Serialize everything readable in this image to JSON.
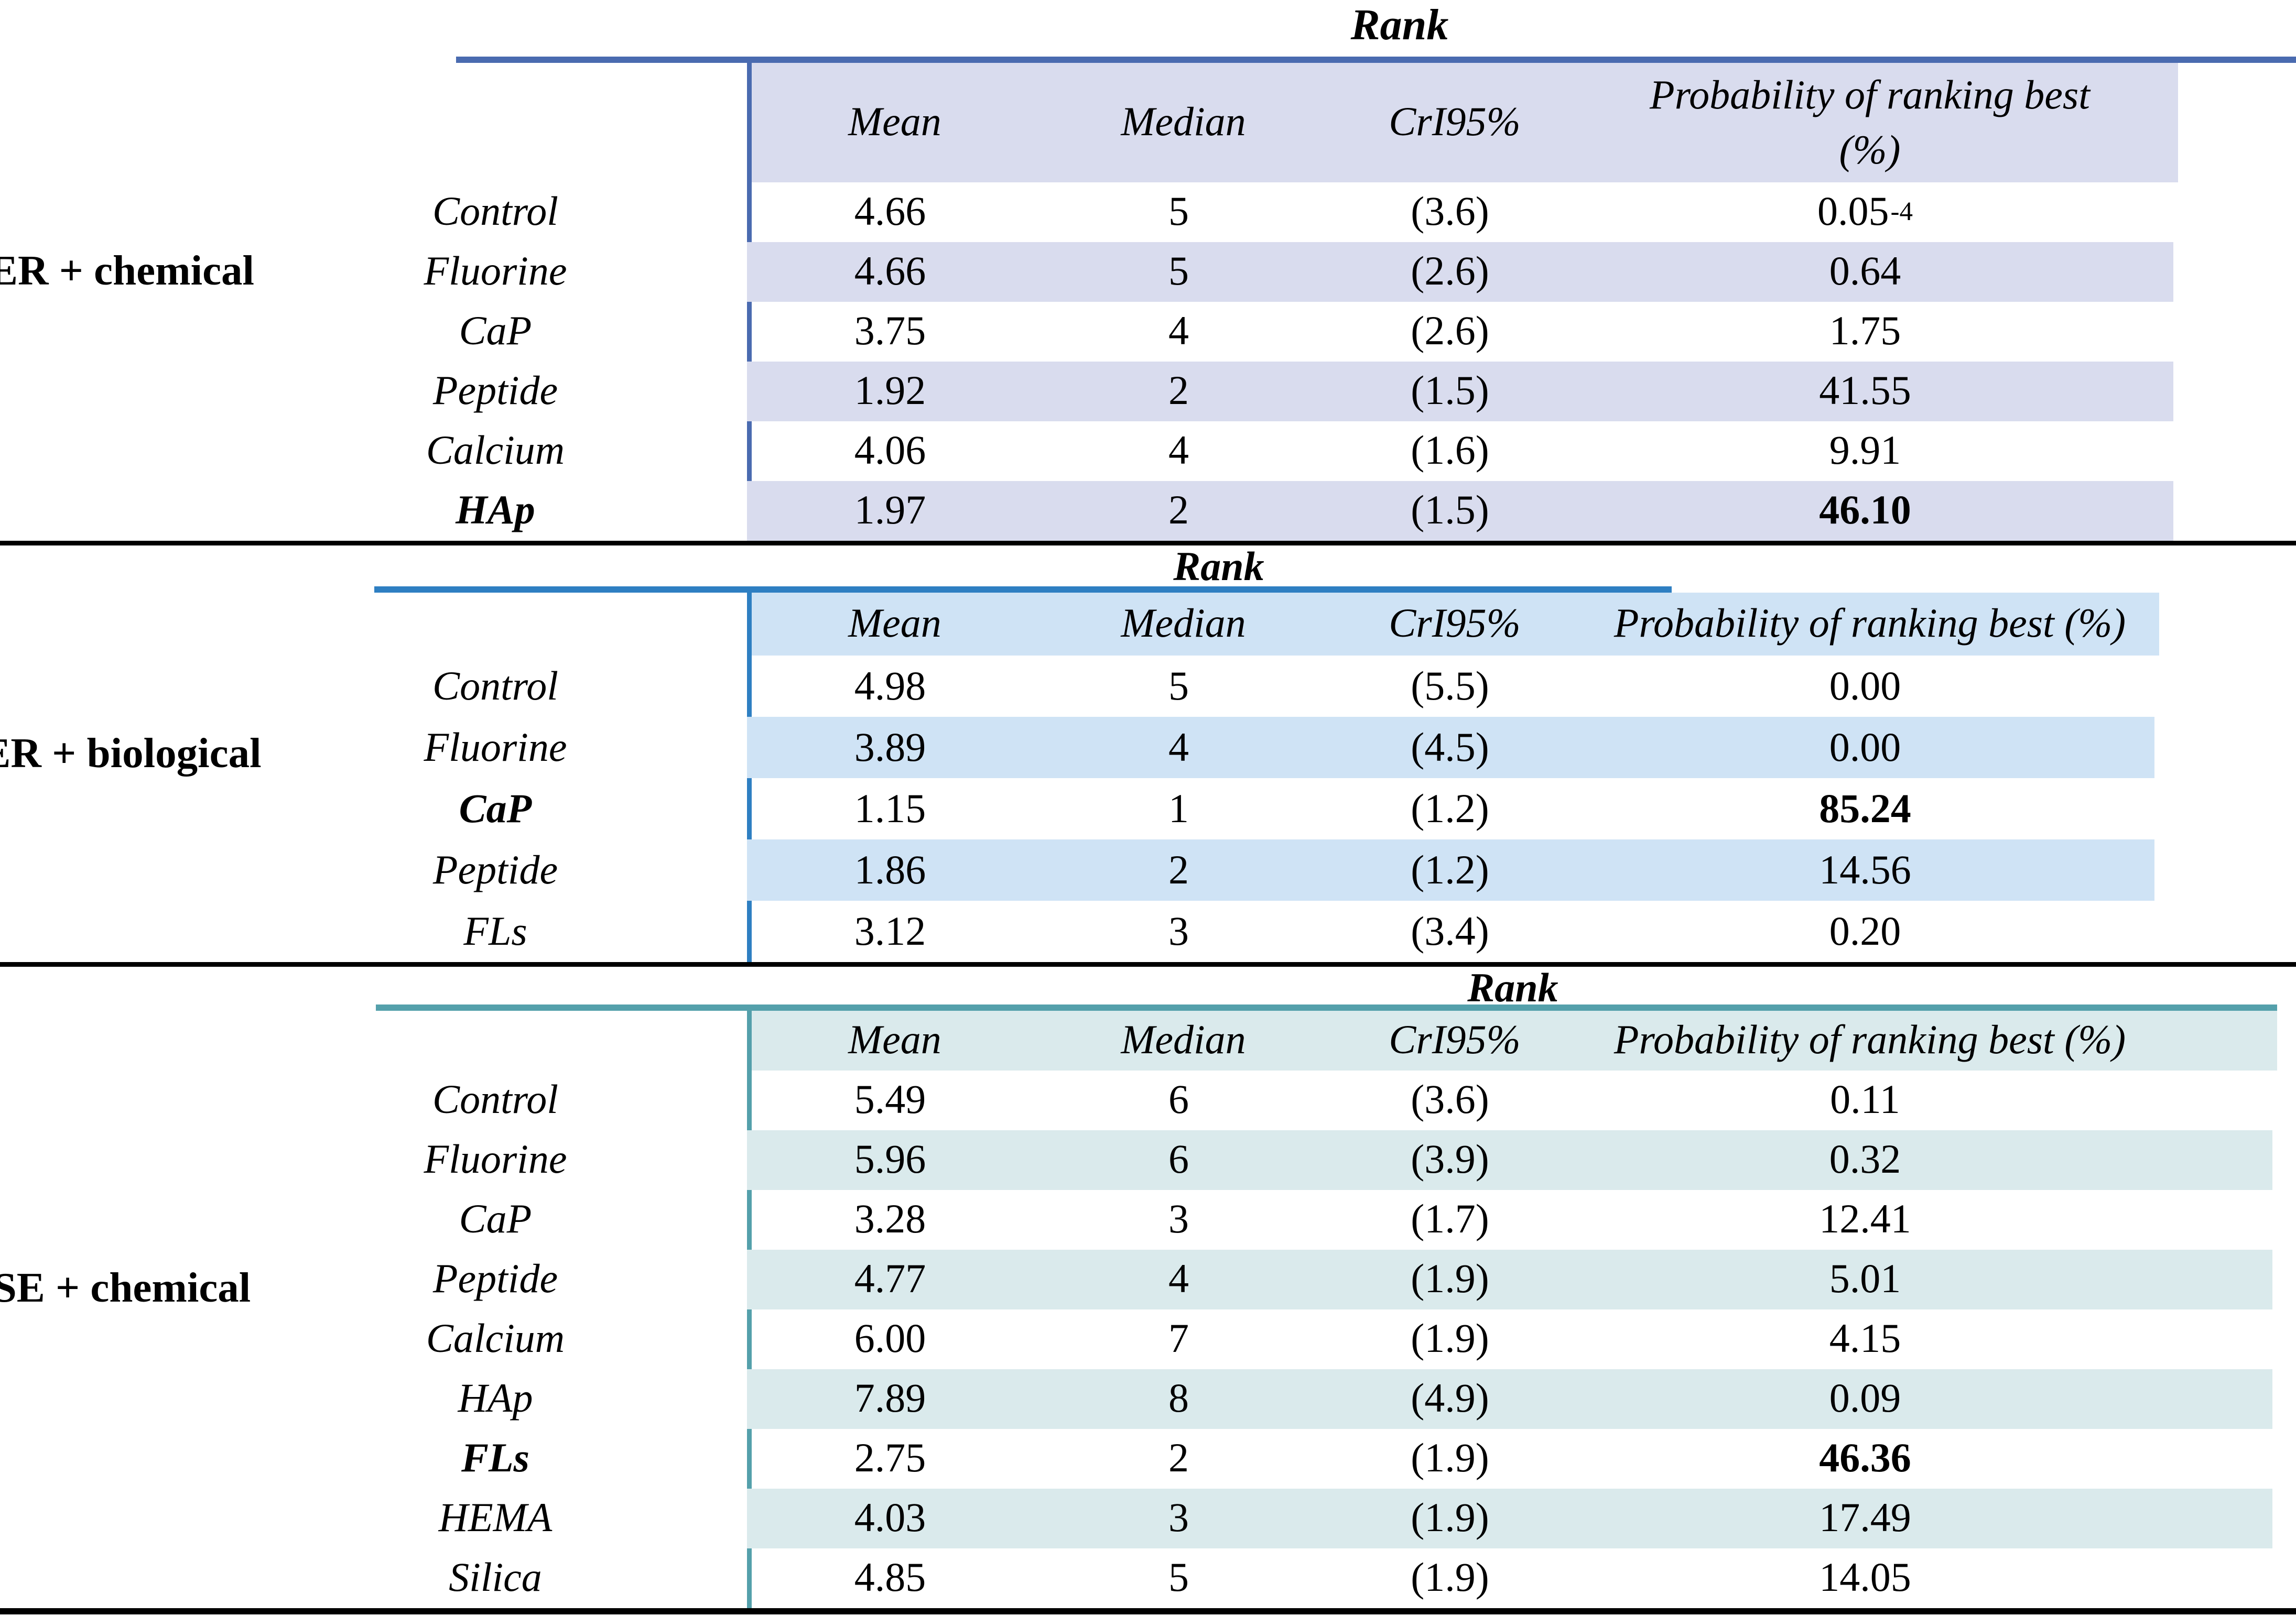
{
  "tables": [
    {
      "group_label": "ER + chemical",
      "rank_label": "Rank",
      "colors": {
        "accent": "#4a6bb0",
        "band": "#d9dcee"
      },
      "headers": {
        "mean": "Mean",
        "median": "Median",
        "cri": "CrI95%",
        "prob_lines": [
          "Probability of ranking best",
          "(%)"
        ]
      },
      "rows": [
        {
          "label": "Control",
          "mean": "4.66",
          "median": "5",
          "cri": "(3.6)",
          "prob": "0.05",
          "prob_sup": "-4",
          "bold": false
        },
        {
          "label": "Fluorine",
          "mean": "4.66",
          "median": "5",
          "cri": "(2.6)",
          "prob": "0.64",
          "bold": false
        },
        {
          "label": "CaP",
          "mean": "3.75",
          "median": "4",
          "cri": "(2.6)",
          "prob": "1.75",
          "bold": false
        },
        {
          "label": "Peptide",
          "mean": "1.92",
          "median": "2",
          "cri": "(1.5)",
          "prob": "41.55",
          "bold": false
        },
        {
          "label": "Calcium",
          "mean": "4.06",
          "median": "4",
          "cri": "(1.6)",
          "prob": "9.91",
          "bold": false
        },
        {
          "label": "HAp",
          "mean": "1.97",
          "median": "2",
          "cri": "(1.5)",
          "prob": "46.10",
          "bold": true
        }
      ]
    },
    {
      "group_label": "ER + biological",
      "rank_label": "Rank",
      "colors": {
        "accent": "#2e7fc2",
        "band": "#cfe3f5"
      },
      "headers": {
        "mean": "Mean",
        "median": "Median",
        "cri": "CrI95%",
        "prob_lines": [
          "Probability of ranking best (%)"
        ]
      },
      "rows": [
        {
          "label": "Control",
          "mean": "4.98",
          "median": "5",
          "cri": "(5.5)",
          "prob": "0.00",
          "bold": false
        },
        {
          "label": "Fluorine",
          "mean": "3.89",
          "median": "4",
          "cri": "(4.5)",
          "prob": "0.00",
          "bold": false
        },
        {
          "label": "CaP",
          "mean": "1.15",
          "median": "1",
          "cri": "(1.2)",
          "prob": "85.24",
          "bold": true
        },
        {
          "label": "Peptide",
          "mean": "1.86",
          "median": "2",
          "cri": "(1.2)",
          "prob": "14.56",
          "bold": false
        },
        {
          "label": "FLs",
          "mean": "3.12",
          "median": "3",
          "cri": "(3.4)",
          "prob": "0.20",
          "bold": false
        }
      ]
    },
    {
      "group_label": "SE + chemical",
      "rank_label": "Rank",
      "colors": {
        "accent": "#54a0ab",
        "band": "#daeaec"
      },
      "headers": {
        "mean": "Mean",
        "median": "Median",
        "cri": "CrI95%",
        "prob_lines": [
          "Probability of ranking best (%)"
        ]
      },
      "rows": [
        {
          "label": "Control",
          "mean": "5.49",
          "median": "6",
          "cri": "(3.6)",
          "prob": "0.11",
          "bold": false
        },
        {
          "label": "Fluorine",
          "mean": "5.96",
          "median": "6",
          "cri": "(3.9)",
          "prob": "0.32",
          "bold": false
        },
        {
          "label": "CaP",
          "mean": "3.28",
          "median": "3",
          "cri": "(1.7)",
          "prob": "12.41",
          "bold": false
        },
        {
          "label": "Peptide",
          "mean": "4.77",
          "median": "4",
          "cri": "(1.9)",
          "prob": "5.01",
          "bold": false
        },
        {
          "label": "Calcium",
          "mean": "6.00",
          "median": "7",
          "cri": "(1.9)",
          "prob": "4.15",
          "bold": false
        },
        {
          "label": "HAp",
          "mean": "7.89",
          "median": "8",
          "cri": "(4.9)",
          "prob": "0.09",
          "bold": false
        },
        {
          "label": "FLs",
          "mean": "2.75",
          "median": "2",
          "cri": "(1.9)",
          "prob": "46.36",
          "bold": true
        },
        {
          "label": "HEMA",
          "mean": "4.03",
          "median": "3",
          "cri": "(1.9)",
          "prob": "17.49",
          "bold": false
        },
        {
          "label": "Silica",
          "mean": "4.85",
          "median": "5",
          "cri": "(1.9)",
          "prob": "14.05",
          "bold": false
        }
      ]
    }
  ]
}
